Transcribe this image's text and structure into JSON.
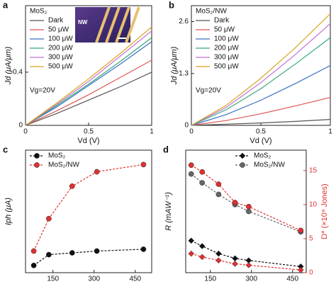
{
  "chart_data": [
    {
      "type": "line",
      "panel": "a",
      "legend_title": "MoS₂",
      "annotation": "Vg=20V",
      "inset_label": "NW",
      "legend": "upper left",
      "xlabel": "Vd (V)",
      "ylabel": "Jd (μA/μm)",
      "xlim": [
        0,
        1
      ],
      "xticks": [
        0,
        0.5,
        1
      ],
      "ylim": [
        0,
        0.9
      ],
      "yticks": [
        0,
        0.4
      ],
      "x": [
        0,
        0.25,
        0.5,
        0.75,
        1
      ],
      "series": [
        {
          "name": "Dark",
          "color": "#555555",
          "values": [
            0,
            0.09,
            0.19,
            0.29,
            0.4
          ]
        },
        {
          "name": "50 μW",
          "color": "#e05555",
          "values": [
            0,
            0.11,
            0.23,
            0.36,
            0.49
          ]
        },
        {
          "name": "100 μW",
          "color": "#3a6fc4",
          "values": [
            0,
            0.14,
            0.3,
            0.46,
            0.63
          ]
        },
        {
          "name": "200 μW",
          "color": "#35a878",
          "values": [
            0,
            0.15,
            0.31,
            0.48,
            0.66
          ]
        },
        {
          "name": "300 μW",
          "color": "#c070d0",
          "values": [
            0,
            0.16,
            0.33,
            0.52,
            0.71
          ]
        },
        {
          "name": "500 μW",
          "color": "#d9a520",
          "values": [
            0,
            0.17,
            0.35,
            0.54,
            0.74
          ]
        }
      ]
    },
    {
      "type": "line",
      "panel": "b",
      "legend_title": "MoS₂/NW",
      "annotation": "Vg=20V",
      "legend": "upper left",
      "xlabel": "Vd (V)",
      "ylabel": "Jd (μA/μm)",
      "xlim": [
        0,
        1
      ],
      "xticks": [
        0,
        0.5,
        1
      ],
      "ylim": [
        0,
        3.0
      ],
      "yticks": [
        0,
        1.3,
        2.6
      ],
      "x": [
        0,
        0.25,
        0.5,
        0.75,
        1
      ],
      "series": [
        {
          "name": "Dark",
          "color": "#555555",
          "values": [
            0,
            0.03,
            0.06,
            0.1,
            0.15
          ]
        },
        {
          "name": "50 μW",
          "color": "#e05555",
          "values": [
            0,
            0.12,
            0.29,
            0.49,
            0.7
          ]
        },
        {
          "name": "100 μW",
          "color": "#3a6fc4",
          "values": [
            0,
            0.27,
            0.63,
            1.05,
            1.5
          ]
        },
        {
          "name": "200 μW",
          "color": "#35a878",
          "values": [
            0,
            0.39,
            0.92,
            1.54,
            2.2
          ]
        },
        {
          "name": "300 μW",
          "color": "#c070d0",
          "values": [
            0,
            0.45,
            1.07,
            1.78,
            2.55
          ]
        },
        {
          "name": "500 μW",
          "color": "#d9a520",
          "values": [
            0,
            0.5,
            1.18,
            1.95,
            2.8
          ]
        }
      ]
    },
    {
      "type": "line",
      "panel": "c",
      "legend": "upper left",
      "linestyle": "dashed",
      "xlabel": "Power (μW)",
      "ylabel": "Iph (μA)",
      "xlim": [
        50,
        510
      ],
      "xticks": [
        150,
        300,
        450
      ],
      "ylim": [
        0,
        3.4
      ],
      "x": [
        80,
        135,
        220,
        310,
        480
      ],
      "series": [
        {
          "name": "MoS₂",
          "color": "#111111",
          "marker": "circle",
          "values": [
            0.2,
            0.5,
            0.55,
            0.6,
            0.65
          ]
        },
        {
          "name": "MoS₂/NW",
          "color": "#e03030",
          "marker": "circle",
          "values": [
            0.6,
            1.5,
            2.4,
            2.8,
            3.0
          ]
        }
      ]
    },
    {
      "type": "line",
      "panel": "d",
      "legend": "upper right",
      "linestyle": "dashed",
      "xlabel": "Power (μW)",
      "ylabel": "R (mAW⁻¹)",
      "y2label": "D* (×10⁹ Jones)",
      "y2color": "#e03030",
      "xlim": [
        60,
        500
      ],
      "xticks": [
        150,
        300,
        450
      ],
      "ylim": [
        0,
        18
      ],
      "y2lim": [
        0,
        18
      ],
      "y2ticks": [
        0,
        5,
        10,
        15
      ],
      "x": [
        80,
        120,
        180,
        240,
        290,
        480
      ],
      "series": [
        {
          "name": "MoS₂",
          "color": "#111111",
          "marker": "diamond",
          "values": [
            4.7,
            3.9,
            2.8,
            2.1,
            1.8,
            0.9
          ]
        },
        {
          "name": "MoS₂/NW",
          "color": "#666666",
          "marker": "circle",
          "values": [
            14.5,
            13.2,
            11.5,
            10,
            9,
            6
          ]
        },
        {
          "axis": "y2",
          "color": "#e03030",
          "marker": "diamond",
          "values": [
            2.8,
            2.3,
            1.8,
            1.3,
            1.1,
            0.4
          ]
        },
        {
          "axis": "y2",
          "color": "#e03030",
          "marker": "circle",
          "values": [
            15.8,
            14.8,
            13,
            10.3,
            9.7,
            6.2
          ]
        }
      ]
    }
  ]
}
